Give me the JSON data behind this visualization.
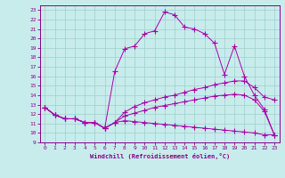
{
  "xlabel": "Windchill (Refroidissement éolien,°C)",
  "background_color": "#c8ecec",
  "grid_color": "#9ecece",
  "line_color": "#aa00aa",
  "xlim": [
    -0.5,
    23.5
  ],
  "ylim": [
    9,
    23.5
  ],
  "x_ticks": [
    0,
    1,
    2,
    3,
    4,
    5,
    6,
    7,
    8,
    9,
    10,
    11,
    12,
    13,
    14,
    15,
    16,
    17,
    18,
    19,
    20,
    21,
    22,
    23
  ],
  "y_ticks": [
    9,
    10,
    11,
    12,
    13,
    14,
    15,
    16,
    17,
    18,
    19,
    20,
    21,
    22,
    23
  ],
  "line1_x": [
    0,
    1,
    2,
    3,
    4,
    5,
    6,
    7,
    8,
    9,
    10,
    11,
    12,
    13,
    14,
    15,
    16,
    17,
    18,
    19,
    20,
    21,
    22,
    23
  ],
  "line1_y": [
    12.7,
    11.9,
    11.5,
    11.5,
    11.1,
    11.1,
    10.5,
    16.5,
    18.9,
    19.2,
    20.5,
    20.8,
    22.8,
    22.5,
    21.2,
    21.0,
    20.5,
    19.5,
    16.2,
    19.2,
    16.0,
    14.0,
    12.5,
    9.8
  ],
  "line2_x": [
    0,
    1,
    2,
    3,
    4,
    5,
    6,
    7,
    8,
    9,
    10,
    11,
    12,
    13,
    14,
    15,
    16,
    17,
    18,
    19,
    20,
    21,
    22,
    23
  ],
  "line2_y": [
    12.7,
    11.9,
    11.5,
    11.5,
    11.1,
    11.1,
    10.5,
    11.1,
    12.2,
    12.8,
    13.2,
    13.5,
    13.8,
    14.0,
    14.3,
    14.6,
    14.8,
    15.1,
    15.3,
    15.5,
    15.5,
    14.8,
    13.8,
    13.5
  ],
  "line3_x": [
    0,
    1,
    2,
    3,
    4,
    5,
    6,
    7,
    8,
    9,
    10,
    11,
    12,
    13,
    14,
    15,
    16,
    17,
    18,
    19,
    20,
    21,
    22,
    23
  ],
  "line3_y": [
    12.7,
    11.9,
    11.5,
    11.5,
    11.1,
    11.1,
    10.5,
    11.1,
    11.8,
    12.1,
    12.4,
    12.7,
    12.9,
    13.1,
    13.3,
    13.5,
    13.7,
    13.9,
    14.0,
    14.1,
    14.0,
    13.5,
    12.3,
    9.8
  ],
  "line4_x": [
    0,
    1,
    2,
    3,
    4,
    5,
    6,
    7,
    8,
    9,
    10,
    11,
    12,
    13,
    14,
    15,
    16,
    17,
    18,
    19,
    20,
    21,
    22,
    23
  ],
  "line4_y": [
    12.7,
    11.9,
    11.5,
    11.5,
    11.1,
    11.1,
    10.5,
    11.1,
    11.3,
    11.2,
    11.1,
    11.0,
    10.9,
    10.8,
    10.7,
    10.6,
    10.5,
    10.4,
    10.3,
    10.2,
    10.1,
    10.0,
    9.8,
    9.8
  ]
}
